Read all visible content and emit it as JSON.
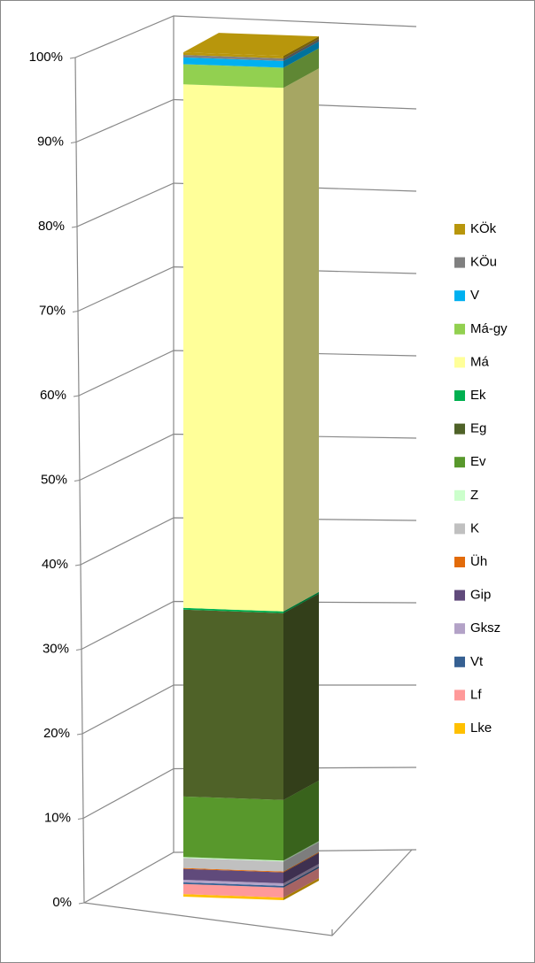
{
  "chart_data": {
    "type": "stacked-bar-3d",
    "ylim": [
      0,
      100
    ],
    "yticks": [
      {
        "value": 0,
        "label": "0%"
      },
      {
        "value": 10,
        "label": "10%"
      },
      {
        "value": 20,
        "label": "20%"
      },
      {
        "value": 30,
        "label": "30%"
      },
      {
        "value": 40,
        "label": "40%"
      },
      {
        "value": 50,
        "label": "50%"
      },
      {
        "value": 60,
        "label": "60%"
      },
      {
        "value": 70,
        "label": "70%"
      },
      {
        "value": 80,
        "label": "80%"
      },
      {
        "value": 90,
        "label": "90%"
      },
      {
        "value": 100,
        "label": "100%"
      }
    ],
    "grid": true,
    "legend": "right",
    "series": [
      {
        "name": "Lke",
        "color": "#ffc000",
        "values": [
          0.3
        ]
      },
      {
        "name": "Lf",
        "color": "#ff9999",
        "values": [
          1.2
        ]
      },
      {
        "name": "Vt",
        "color": "#366092",
        "values": [
          0.2
        ]
      },
      {
        "name": "Gksz",
        "color": "#b3a2c7",
        "values": [
          0.3
        ]
      },
      {
        "name": "Gip",
        "color": "#604a7b",
        "values": [
          1.3
        ]
      },
      {
        "name": "Üh",
        "color": "#e26b0a",
        "values": [
          0.1
        ]
      },
      {
        "name": "K",
        "color": "#c0c0c0",
        "values": [
          1.2
        ]
      },
      {
        "name": "Z",
        "color": "#ccffcc",
        "values": [
          0.1
        ]
      },
      {
        "name": "Ev",
        "color": "#58982c",
        "values": [
          7.2
        ]
      },
      {
        "name": "Eg",
        "color": "#4f6228",
        "values": [
          22.2
        ]
      },
      {
        "name": "Ek",
        "color": "#00b050",
        "values": [
          0.2
        ]
      },
      {
        "name": "Má",
        "color": "#ffff99",
        "values": [
          62.2
        ]
      },
      {
        "name": "Má-gy",
        "color": "#92d050",
        "values": [
          2.4
        ]
      },
      {
        "name": "V",
        "color": "#00b0f0",
        "values": [
          0.8
        ]
      },
      {
        "name": "KÖu",
        "color": "#808080",
        "values": [
          0.3
        ]
      },
      {
        "name": "KÖk",
        "color": "#b8960c",
        "values": [
          0.3
        ]
      }
    ]
  }
}
